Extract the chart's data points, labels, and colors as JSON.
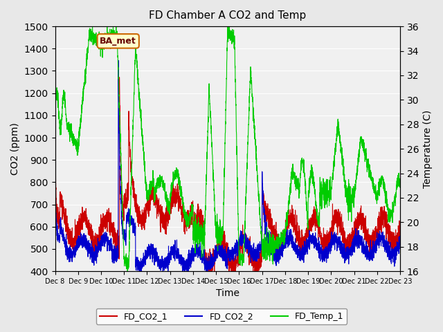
{
  "title": "FD Chamber A CO2 and Temp",
  "xlabel": "Time",
  "ylabel_left": "CO2 (ppm)",
  "ylabel_right": "Temperature (C)",
  "ylim_left": [
    400,
    1500
  ],
  "ylim_right": [
    16,
    36
  ],
  "yticks_left": [
    400,
    500,
    600,
    700,
    800,
    900,
    1000,
    1100,
    1200,
    1300,
    1400,
    1500
  ],
  "yticks_right": [
    16,
    18,
    20,
    22,
    24,
    26,
    28,
    30,
    32,
    34,
    36
  ],
  "legend_labels": [
    "FD_CO2_1",
    "FD_CO2_2",
    "FD_Temp_1"
  ],
  "legend_colors": [
    "#cc0000",
    "#0000cc",
    "#00cc00"
  ],
  "badge_text": "BA_met",
  "badge_bg": "#ffffcc",
  "badge_border": "#cc6600",
  "bg_color": "#e8e8e8",
  "plot_bg": "#f0f0f0",
  "grid_color": "#ffffff",
  "n_points": 3600
}
